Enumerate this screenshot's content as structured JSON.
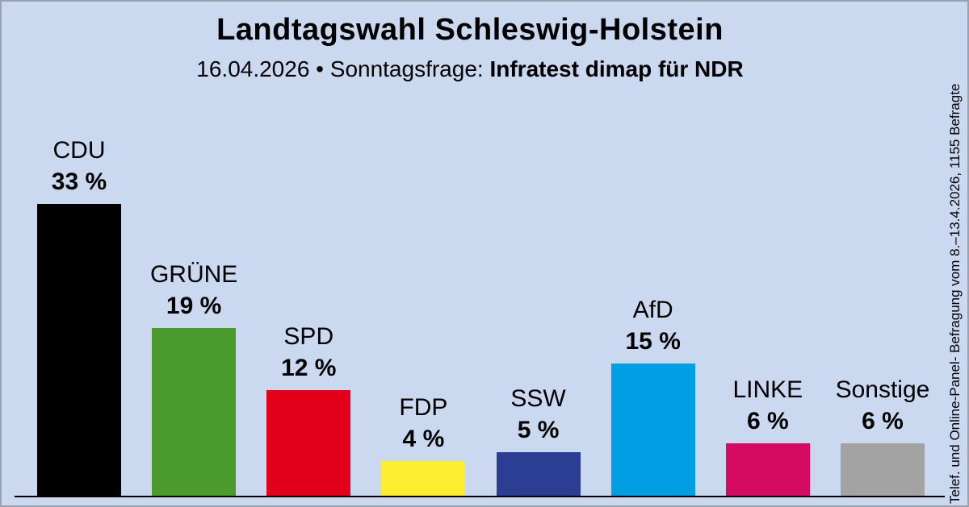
{
  "header": {
    "title": "Landtagswahl Schleswig-Holstein",
    "subtitle_regular": "16.04.2026 • Sonntagsfrage: ",
    "subtitle_bold": "Infratest dimap für NDR"
  },
  "source_note": "Telef. und Online-Panel- Befragung vom 8.–13.4.2026, 1155 Befragte",
  "colors": {
    "background": "#cad8f0",
    "frame": "#9aa1ad",
    "axis": "#000000",
    "text": "#000000"
  },
  "chart_data": {
    "type": "bar",
    "title": "Landtagswahl Schleswig-Holstein",
    "subtitle": "16.04.2026 • Sonntagsfrage: Infratest dimap für NDR",
    "categories": [
      "CDU",
      "GRÜNE",
      "SPD",
      "FDP",
      "SSW",
      "AfD",
      "LINKE",
      "Sonstige"
    ],
    "values": [
      33,
      19,
      12,
      4,
      5,
      15,
      6,
      6
    ],
    "value_labels": [
      "33 %",
      "19 %",
      "12 %",
      "4 %",
      "5 %",
      "15 %",
      "6 %",
      "6 %"
    ],
    "bar_colors": [
      "#000000",
      "#4a9a2e",
      "#e2001a",
      "#fbee31",
      "#2b3e94",
      "#009fe3",
      "#d40a63",
      "#a3a3a3"
    ],
    "unit": "%",
    "ylim": [
      0,
      35
    ],
    "grid": false,
    "legend": "none",
    "value_label_position": "above-bar",
    "baseline": "bottom"
  }
}
